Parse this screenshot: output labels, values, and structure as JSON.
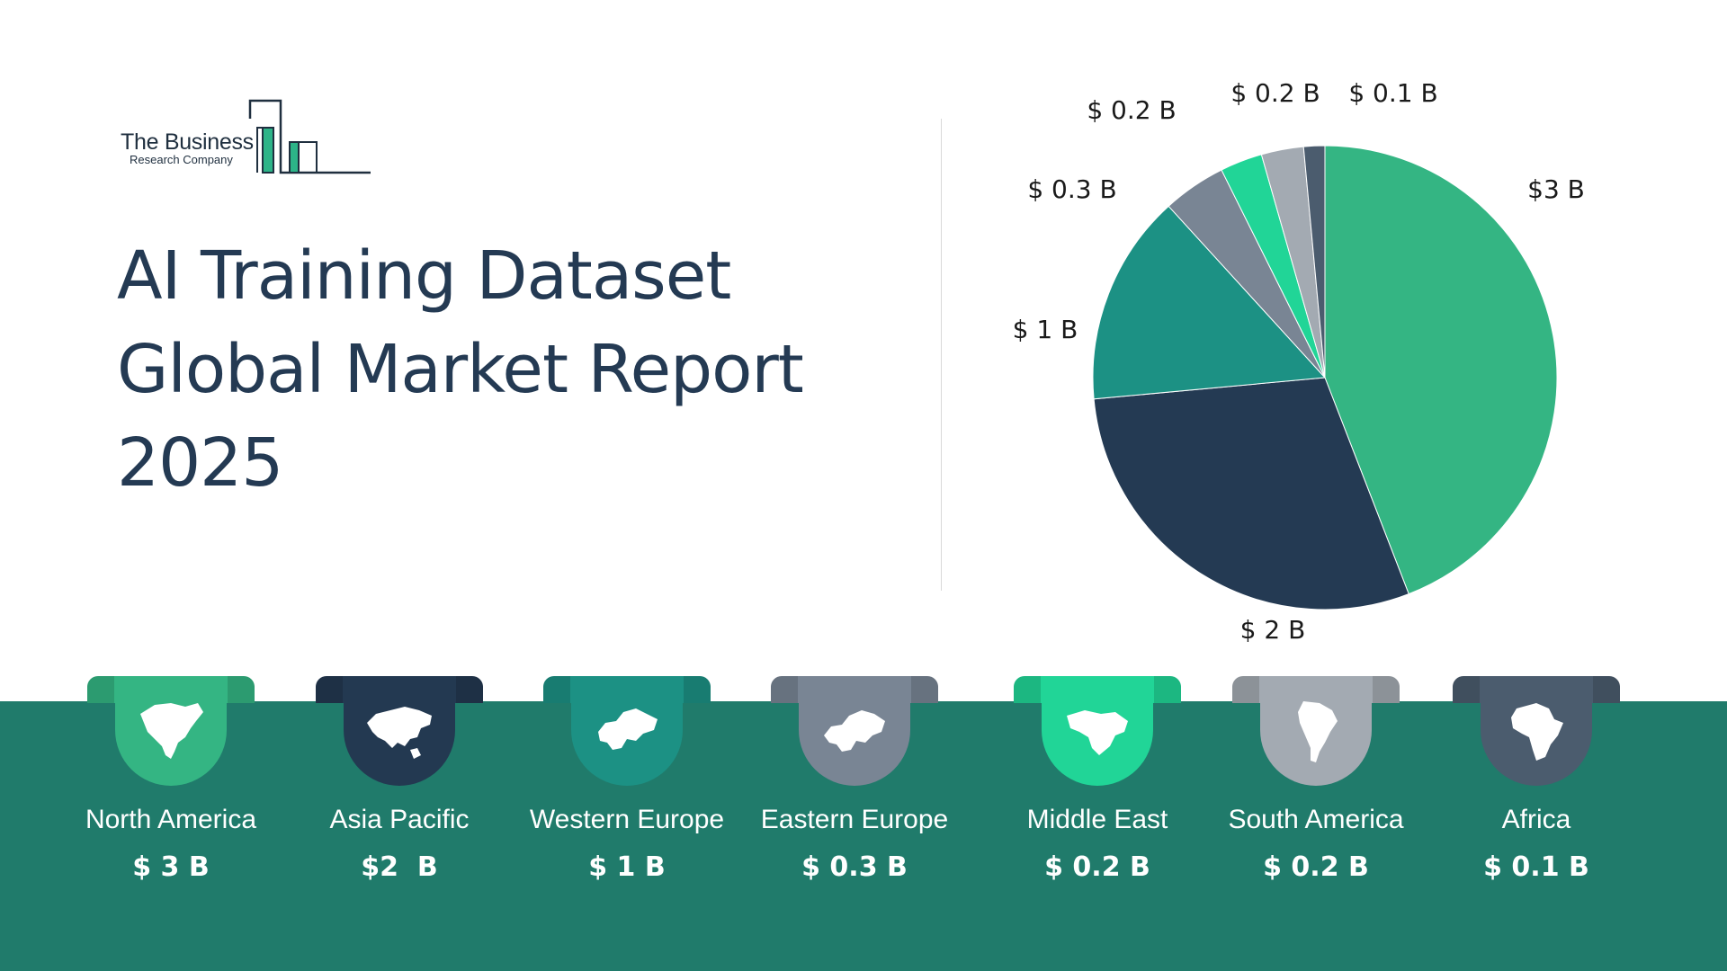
{
  "logo": {
    "line1": "The Business",
    "line2": "Research Company"
  },
  "title": {
    "line1": "AI Training Dataset",
    "line2": "Global Market Report",
    "line3": "2025"
  },
  "colors": {
    "band": "#207b6b",
    "north_america": "#34b583",
    "asia_pacific": "#233951",
    "western_europe": "#1c9184",
    "eastern_europe": "#798594",
    "middle_east": "#21d597",
    "south_america": "#a3aab2",
    "africa": "#4b5c6e"
  },
  "chart_data": {
    "type": "pie",
    "slices": [
      {
        "label": "$3 B",
        "value": 3,
        "color": "#34b583"
      },
      {
        "label": "$ 2 B",
        "value": 2,
        "color": "#243a53"
      },
      {
        "label": "$ 1 B",
        "value": 1,
        "color": "#1c9184"
      },
      {
        "label": "$ 0.3 B",
        "value": 0.3,
        "color": "#798594"
      },
      {
        "label": "$ 0.2 B",
        "value": 0.2,
        "color": "#21d597"
      },
      {
        "label": "$ 0.2 B",
        "value": 0.2,
        "color": "#a3aab2"
      },
      {
        "label": "$ 0.1 B",
        "value": 0.1,
        "color": "#4b5c6e"
      }
    ]
  },
  "regions": [
    {
      "name": "North America",
      "value": "$ 3 B",
      "icon": "north-america-map-icon"
    },
    {
      "name": "Asia Pacific",
      "value": "$2  B",
      "icon": "asia-pacific-map-icon"
    },
    {
      "name": "Western Europe",
      "value": "$ 1 B",
      "icon": "western-europe-map-icon"
    },
    {
      "name": "Eastern Europe",
      "value": "$ 0.3 B",
      "icon": "eastern-europe-map-icon"
    },
    {
      "name": "Middle East",
      "value": "$ 0.2 B",
      "icon": "middle-east-map-icon"
    },
    {
      "name": "South America",
      "value": "$ 0.2 B",
      "icon": "south-america-map-icon"
    },
    {
      "name": "Africa",
      "value": "$ 0.1 B",
      "icon": "africa-map-icon"
    }
  ]
}
